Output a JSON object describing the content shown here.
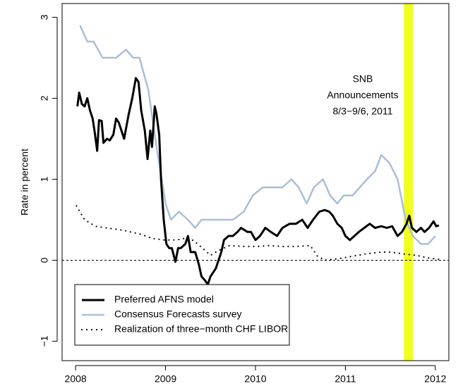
{
  "chart_data": {
    "type": "line",
    "ylabel": "Rate in percent",
    "annotation": [
      "SNB",
      "Announcements",
      "8/3−9/6, 2011"
    ],
    "highlight": {
      "x": [
        2011.65,
        2011.75
      ],
      "color": "#f0ff1e"
    },
    "hline": 0,
    "xlim": [
      2007.85,
      2012.15
    ],
    "ylim": [
      -1.24,
      3.17
    ],
    "xticks": [
      2008,
      2009,
      2010,
      2011,
      2012
    ],
    "yticks": [
      {
        "value": -1,
        "label": "−1"
      },
      0,
      1,
      2,
      3
    ],
    "legend": "bottom-left",
    "series": [
      {
        "name": "Preferred AFNS model",
        "color": "#000000",
        "linestyle": "solid",
        "x": [
          2008.02,
          2008.04,
          2008.07,
          2008.1,
          2008.13,
          2008.16,
          2008.19,
          2008.21,
          2008.24,
          2008.26,
          2008.29,
          2008.31,
          2008.35,
          2008.38,
          2008.42,
          2008.45,
          2008.48,
          2008.51,
          2008.54,
          2008.59,
          2008.63,
          2008.67,
          2008.7,
          2008.73,
          2008.77,
          2008.8,
          2008.83,
          2008.85,
          2008.88,
          2008.9,
          2008.93,
          2008.95,
          2008.98,
          2009.01,
          2009.04,
          2009.07,
          2009.11,
          2009.14,
          2009.17,
          2009.22,
          2009.25,
          2009.28,
          2009.33,
          2009.37,
          2009.4,
          2009.44,
          2009.47,
          2009.5,
          2009.53,
          2009.56,
          2009.59,
          2009.62,
          2009.65,
          2009.7,
          2009.75,
          2009.8,
          2009.84,
          2009.91,
          2009.95,
          2010.0,
          2010.05,
          2010.11,
          2010.17,
          2010.24,
          2010.3,
          2010.38,
          2010.45,
          2010.52,
          2010.58,
          2010.64,
          2010.71,
          2010.77,
          2010.82,
          2010.86,
          2010.91,
          2010.96,
          2011.0,
          2011.05,
          2011.1,
          2011.15,
          2011.21,
          2011.27,
          2011.33,
          2011.4,
          2011.46,
          2011.52,
          2011.58,
          2011.63,
          2011.68,
          2011.71,
          2011.74,
          2011.79,
          2011.84,
          2011.88,
          2011.93,
          2011.98,
          2012.01,
          2012.04
        ],
        "values": [
          1.9,
          2.07,
          1.93,
          1.9,
          2.0,
          1.85,
          1.75,
          1.6,
          1.35,
          1.73,
          1.72,
          1.45,
          1.5,
          1.48,
          1.55,
          1.75,
          1.7,
          1.6,
          1.5,
          1.8,
          2.0,
          2.25,
          2.2,
          1.85,
          1.6,
          1.25,
          1.6,
          1.4,
          1.9,
          1.8,
          1.55,
          1.0,
          0.5,
          0.2,
          0.15,
          0.15,
          -0.02,
          0.15,
          0.15,
          0.2,
          0.3,
          0.1,
          0.1,
          -0.05,
          -0.2,
          -0.25,
          -0.3,
          -0.2,
          -0.15,
          -0.1,
          0.0,
          0.1,
          0.25,
          0.3,
          0.3,
          0.35,
          0.4,
          0.35,
          0.35,
          0.25,
          0.3,
          0.4,
          0.35,
          0.3,
          0.4,
          0.45,
          0.45,
          0.5,
          0.4,
          0.5,
          0.6,
          0.62,
          0.6,
          0.55,
          0.45,
          0.4,
          0.3,
          0.25,
          0.3,
          0.35,
          0.4,
          0.45,
          0.4,
          0.42,
          0.4,
          0.42,
          0.3,
          0.35,
          0.45,
          0.55,
          0.4,
          0.35,
          0.4,
          0.35,
          0.4,
          0.48,
          0.42,
          0.43
        ]
      },
      {
        "name": "Consensus Forecasts survey",
        "color": "#a9bfd9",
        "linestyle": "solid",
        "x": [
          2008.05,
          2008.13,
          2008.2,
          2008.3,
          2008.45,
          2008.56,
          2008.64,
          2008.71,
          2008.81,
          2008.9,
          2009.0,
          2009.06,
          2009.15,
          2009.25,
          2009.33,
          2009.4,
          2009.51,
          2009.75,
          2009.87,
          2009.97,
          2010.08,
          2010.18,
          2010.3,
          2010.4,
          2010.48,
          2010.57,
          2010.65,
          2010.75,
          2010.83,
          2010.91,
          2010.98,
          2011.08,
          2011.16,
          2011.24,
          2011.33,
          2011.4,
          2011.49,
          2011.58,
          2011.67,
          2011.75,
          2011.84,
          2011.92,
          2012.0
        ],
        "values": [
          2.9,
          2.7,
          2.7,
          2.5,
          2.5,
          2.6,
          2.5,
          2.5,
          2.1,
          1.4,
          0.7,
          0.5,
          0.6,
          0.5,
          0.4,
          0.5,
          0.5,
          0.5,
          0.6,
          0.8,
          0.9,
          0.9,
          0.9,
          1.0,
          0.9,
          0.7,
          0.9,
          1.0,
          0.8,
          0.7,
          0.8,
          0.8,
          0.9,
          1.0,
          1.1,
          1.3,
          1.2,
          1.0,
          0.5,
          0.3,
          0.2,
          0.2,
          0.3
        ]
      },
      {
        "name": "Realization of three−month CHF LIBOR",
        "color": "#000000",
        "linestyle": "dotted",
        "x": [
          2008.01,
          2008.1,
          2008.22,
          2008.34,
          2008.53,
          2008.73,
          2008.85,
          2008.98,
          2009.12,
          2009.26,
          2009.36,
          2009.44,
          2009.5,
          2009.59,
          2009.71,
          2009.87,
          2010.02,
          2010.14,
          2010.3,
          2010.45,
          2010.61,
          2010.69,
          2010.77,
          2010.93,
          2011.08,
          2011.24,
          2011.4,
          2011.51,
          2011.63,
          2011.79,
          2011.91,
          2012.04
        ],
        "values": [
          0.67,
          0.5,
          0.42,
          0.4,
          0.37,
          0.32,
          0.27,
          0.25,
          0.25,
          0.28,
          0.2,
          0.12,
          0.06,
          0.12,
          0.18,
          0.17,
          0.17,
          0.18,
          0.17,
          0.17,
          0.18,
          0.05,
          0.0,
          0.02,
          0.05,
          0.08,
          0.1,
          0.1,
          0.08,
          0.06,
          0.03,
          0.01
        ]
      }
    ]
  }
}
